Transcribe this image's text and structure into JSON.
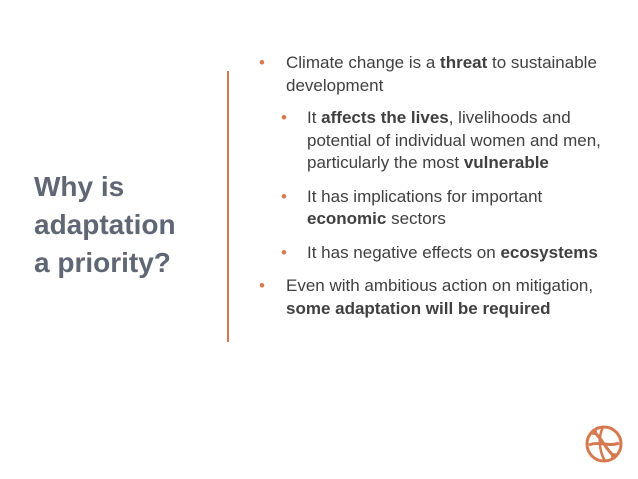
{
  "title": {
    "line1": "Why is",
    "line2": "adaptation",
    "line3": "a priority?"
  },
  "bullet_glyph": "•",
  "bullets": [
    {
      "parts": [
        "Climate change is a ",
        "threat",
        " to sustainable development"
      ]
    },
    {
      "parts": [
        "It ",
        "affects the lives",
        ", livelihoods and potential of individual women and men, particularly the most ",
        "vulnerable"
      ]
    },
    {
      "parts": [
        "It has implications for important ",
        "economic",
        " sectors"
      ]
    },
    {
      "parts": [
        "It has negative effects on ",
        "ecosystems"
      ]
    },
    {
      "parts": [
        "Even with ambitious action on mitigation, ",
        "some adaptation will be required"
      ]
    }
  ],
  "colors": {
    "accent": "#d7794f",
    "title": "#5f6674",
    "body": "#404040"
  },
  "logo": {
    "icon": "globe-icon"
  }
}
